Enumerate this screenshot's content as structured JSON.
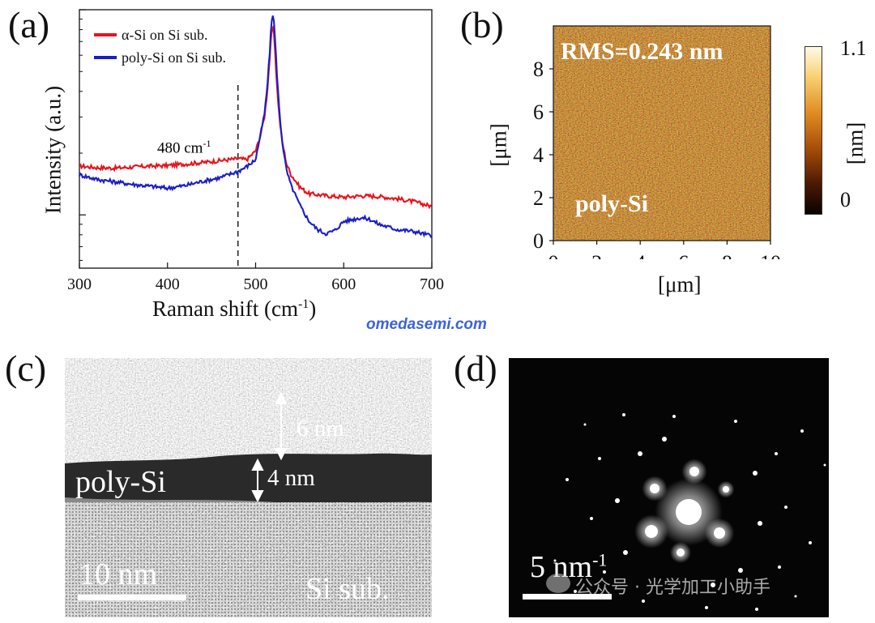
{
  "panels": {
    "a": {
      "label": "(a)",
      "ylabel": "Intensity (a.u.)",
      "xlabel_main": "Raman shift (cm",
      "xlabel_sup": "-1",
      "xlabel_end": ")",
      "annotation_main": "480 cm",
      "annotation_sup": "-1"
    },
    "b": {
      "label": "(b)",
      "rms_text": "RMS=0.243 nm",
      "material": "poly-Si",
      "xlabel": "[μm]",
      "ylabel": "[μm]",
      "colorbar_label": "[nm]",
      "colorbar_max": "1.1",
      "colorbar_min": "0",
      "xticks": [
        "0",
        "2",
        "4",
        "6",
        "8",
        "10"
      ],
      "yticks": [
        "0",
        "2",
        "4",
        "6",
        "8"
      ],
      "colors": {
        "dark": "#1a0800",
        "mid": "#9a4a08",
        "bright": "#f0a030",
        "light": "#fff6d8"
      }
    },
    "c": {
      "label": "(c)",
      "thickness_top": "6 nm",
      "thickness_poly": "4 nm",
      "layer_label": "poly-Si",
      "substrate_label": "Si sub.",
      "scale_bar": "10 nm"
    },
    "d": {
      "label": "(d)",
      "scale_bar_main": "5 nm",
      "scale_bar_sup": "-1",
      "wechat_text": "公众号 · 光学加工小助手"
    }
  },
  "watermark": "omedasemi.com",
  "chart_data": {
    "type": "line",
    "title": "",
    "xlabel": "Raman shift (cm-1)",
    "ylabel": "Intensity (a.u.)",
    "xlim": [
      300,
      700
    ],
    "ylim": [
      0,
      10
    ],
    "y_scale": "log",
    "x_ticks": [
      300,
      400,
      500,
      600,
      700
    ],
    "grid": false,
    "legend_position": "top-left",
    "annotation": {
      "x": 480,
      "text": "480 cm-1",
      "style": "dashed vertical line"
    },
    "series": [
      {
        "name": "α-Si on Si sub.",
        "color": "#e8141c",
        "x": [
          300,
          320,
          340,
          360,
          380,
          400,
          420,
          440,
          460,
          480,
          490,
          500,
          505,
          510,
          513,
          516,
          518,
          520,
          522,
          524,
          527,
          530,
          535,
          540,
          550,
          560,
          580,
          600,
          620,
          640,
          660,
          680,
          700
        ],
        "y": [
          1.73,
          1.7,
          1.69,
          1.71,
          1.73,
          1.74,
          1.77,
          1.8,
          1.84,
          1.88,
          1.86,
          2.05,
          2.4,
          3.0,
          3.9,
          5.8,
          7.7,
          8.3,
          6.4,
          4.4,
          3.0,
          2.3,
          1.78,
          1.58,
          1.37,
          1.27,
          1.24,
          1.22,
          1.24,
          1.23,
          1.2,
          1.16,
          1.1
        ]
      },
      {
        "name": "poly-Si on Si sub.",
        "color": "#1a1ec8",
        "x": [
          300,
          320,
          340,
          360,
          380,
          400,
          420,
          440,
          460,
          480,
          490,
          500,
          505,
          510,
          513,
          516,
          518,
          520,
          522,
          524,
          527,
          530,
          535,
          540,
          550,
          560,
          570,
          580,
          590,
          600,
          610,
          620,
          630,
          640,
          660,
          680,
          700
        ],
        "y": [
          1.57,
          1.49,
          1.45,
          1.41,
          1.38,
          1.35,
          1.39,
          1.46,
          1.52,
          1.63,
          1.72,
          1.86,
          2.4,
          3.1,
          4.1,
          6.2,
          8.7,
          9.75,
          7.3,
          5.1,
          3.2,
          2.3,
          1.65,
          1.4,
          1.12,
          0.94,
          0.85,
          0.81,
          0.84,
          0.93,
          0.95,
          0.97,
          0.95,
          0.9,
          0.85,
          0.83,
          0.79
        ]
      }
    ]
  }
}
